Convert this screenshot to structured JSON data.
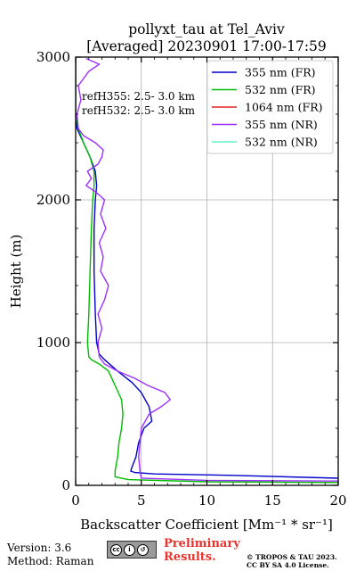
{
  "chart_data": {
    "type": "line",
    "title_line1": "pollyxt_tau at Tel_Aviv",
    "title_line2": "[Averaged] 20230901 17:00-17:59",
    "xlabel": "Backscatter Coefficient [Mm⁻¹ * sr⁻¹]",
    "ylabel": "Height (m)",
    "xlim": [
      0,
      20
    ],
    "ylim": [
      0,
      3000
    ],
    "xticks": [
      0,
      5,
      10,
      15,
      20
    ],
    "yticks": [
      0,
      1000,
      2000,
      3000
    ],
    "grid": true,
    "legend_position": "top-right",
    "annotations": [
      "refH355:  2.5- 3.0 km",
      "refH532:  2.5- 3.0 km"
    ],
    "series": [
      {
        "name": "355 nm (FR)",
        "color": "#0000cc",
        "points": [
          [
            20,
            50
          ],
          [
            12,
            70
          ],
          [
            6,
            80
          ],
          [
            4.5,
            90
          ],
          [
            4.2,
            100
          ],
          [
            4.3,
            130
          ],
          [
            4.6,
            200
          ],
          [
            4.8,
            300
          ],
          [
            5.2,
            400
          ],
          [
            5.8,
            450
          ],
          [
            5.6,
            550
          ],
          [
            5.0,
            650
          ],
          [
            4.3,
            720
          ],
          [
            3.2,
            800
          ],
          [
            2.2,
            880
          ],
          [
            1.8,
            920
          ],
          [
            1.6,
            1000
          ],
          [
            1.5,
            1200
          ],
          [
            1.4,
            1500
          ],
          [
            1.4,
            1800
          ],
          [
            1.5,
            2000
          ],
          [
            1.6,
            2100
          ],
          [
            1.5,
            2200
          ],
          [
            1.1,
            2300
          ],
          [
            0.6,
            2400
          ],
          [
            0.1,
            2500
          ],
          [
            0,
            2600
          ],
          [
            0,
            3000
          ]
        ]
      },
      {
        "name": "532 nm (FR)",
        "color": "#00bb00",
        "points": [
          [
            20,
            20
          ],
          [
            10,
            25
          ],
          [
            4,
            40
          ],
          [
            3.0,
            60
          ],
          [
            3.0,
            100
          ],
          [
            3.2,
            200
          ],
          [
            3.3,
            300
          ],
          [
            3.5,
            400
          ],
          [
            3.6,
            500
          ],
          [
            3.5,
            600
          ],
          [
            3.0,
            700
          ],
          [
            2.5,
            800
          ],
          [
            1.8,
            850
          ],
          [
            1.2,
            880
          ],
          [
            1.0,
            900
          ],
          [
            0.9,
            1000
          ],
          [
            1.0,
            1200
          ],
          [
            1.1,
            1500
          ],
          [
            1.2,
            1800
          ],
          [
            1.3,
            2000
          ],
          [
            1.4,
            2100
          ],
          [
            1.4,
            2200
          ],
          [
            1.1,
            2300
          ],
          [
            0.6,
            2400
          ],
          [
            0.2,
            2500
          ],
          [
            0,
            2600
          ],
          [
            0,
            3000
          ]
        ]
      },
      {
        "name": "1064 nm (FR)",
        "color": "#dd2222",
        "points": []
      },
      {
        "name": "355 nm (NR)",
        "color": "#9b30ff",
        "points": [
          [
            20,
            30
          ],
          [
            10,
            35
          ],
          [
            5,
            50
          ],
          [
            4.9,
            100
          ],
          [
            4.8,
            200
          ],
          [
            4.9,
            300
          ],
          [
            5.0,
            400
          ],
          [
            5.6,
            500
          ],
          [
            6.5,
            550
          ],
          [
            7.2,
            600
          ],
          [
            6.8,
            650
          ],
          [
            5.5,
            700
          ],
          [
            4.5,
            750
          ],
          [
            3.2,
            800
          ],
          [
            2.2,
            850
          ],
          [
            1.8,
            900
          ],
          [
            1.7,
            1000
          ],
          [
            2.0,
            1100
          ],
          [
            1.7,
            1200
          ],
          [
            2.2,
            1300
          ],
          [
            2.5,
            1400
          ],
          [
            1.9,
            1500
          ],
          [
            2.1,
            1600
          ],
          [
            1.8,
            1700
          ],
          [
            2.3,
            1800
          ],
          [
            1.9,
            1900
          ],
          [
            2.2,
            2000
          ],
          [
            1.6,
            2050
          ],
          [
            0.8,
            2100
          ],
          [
            1.2,
            2150
          ],
          [
            0.9,
            2200
          ],
          [
            1.7,
            2250
          ],
          [
            2.0,
            2300
          ],
          [
            2.1,
            2350
          ],
          [
            1.5,
            2400
          ],
          [
            0.6,
            2450
          ],
          [
            0.2,
            2500
          ],
          [
            0.1,
            2600
          ],
          [
            0.4,
            2700
          ],
          [
            0.2,
            2800
          ],
          [
            1.0,
            2900
          ],
          [
            1.8,
            2950
          ],
          [
            0.8,
            2990
          ]
        ]
      },
      {
        "name": "532 nm (NR)",
        "color": "#66f0c6",
        "points": []
      }
    ]
  },
  "footer": {
    "version": "Version: 3.6",
    "method": "Method: Raman",
    "preliminary": "Preliminary\nResults.",
    "copyright": "© TROPOS & TAU 2023.\nCC BY SA 4.0 License."
  }
}
